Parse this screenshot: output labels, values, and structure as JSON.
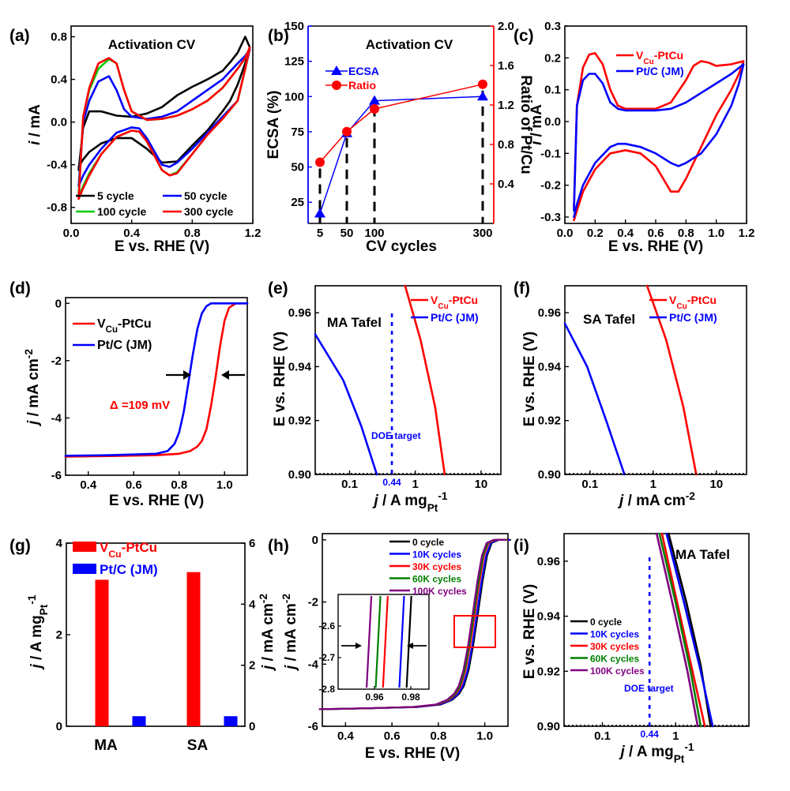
{
  "colors": {
    "black": "#000000",
    "red": "#ff0000",
    "blue": "#0000ff",
    "green": "#00cc00",
    "purple": "#800080"
  },
  "chart_data": [
    {
      "panel": "(a)",
      "type": "line",
      "annotation": "Activation CV",
      "xlabel": "E vs. RHE (V)",
      "ylabel": "i / mA",
      "xlim": [
        0.0,
        1.2
      ],
      "ylim": [
        -0.95,
        0.9
      ],
      "xticks": [
        0.0,
        0.4,
        0.8,
        1.2
      ],
      "yticks": [
        -0.8,
        -0.4,
        0.0,
        0.4,
        0.8
      ],
      "legend_position": "bottom",
      "series": [
        {
          "name": "5 cycle",
          "color": "#000000",
          "x": [
            0.05,
            0.08,
            0.12,
            0.2,
            0.3,
            0.4,
            0.5,
            0.6,
            0.7,
            0.8,
            0.9,
            1.0,
            1.05,
            1.1,
            1.15,
            1.18,
            1.15,
            1.1,
            1.05,
            1.0,
            0.9,
            0.8,
            0.7,
            0.6,
            0.5,
            0.4,
            0.3,
            0.2,
            0.12,
            0.08,
            0.05
          ],
          "y": [
            -0.45,
            -0.05,
            0.1,
            0.1,
            0.06,
            0.05,
            0.08,
            0.14,
            0.25,
            0.33,
            0.4,
            0.48,
            0.56,
            0.65,
            0.8,
            0.7,
            0.55,
            0.35,
            0.2,
            0.1,
            -0.08,
            -0.22,
            -0.37,
            -0.38,
            -0.25,
            -0.15,
            -0.15,
            -0.2,
            -0.28,
            -0.35,
            -0.42
          ]
        },
        {
          "name": "50 cycle",
          "color": "#0000ff",
          "x": [
            0.05,
            0.08,
            0.12,
            0.18,
            0.25,
            0.3,
            0.35,
            0.4,
            0.5,
            0.6,
            0.7,
            0.8,
            0.9,
            1.0,
            1.1,
            1.15,
            1.18,
            1.15,
            1.1,
            1.0,
            0.9,
            0.8,
            0.7,
            0.65,
            0.6,
            0.5,
            0.45,
            0.4,
            0.3,
            0.2,
            0.12,
            0.08,
            0.05
          ],
          "y": [
            -0.6,
            0.0,
            0.2,
            0.38,
            0.43,
            0.3,
            0.12,
            0.05,
            0.03,
            0.05,
            0.1,
            0.2,
            0.3,
            0.4,
            0.55,
            0.62,
            0.68,
            0.5,
            0.2,
            0.05,
            -0.1,
            -0.25,
            -0.38,
            -0.42,
            -0.4,
            -0.15,
            -0.06,
            -0.05,
            -0.1,
            -0.25,
            -0.4,
            -0.5,
            -0.6
          ]
        },
        {
          "name": "100 cycle",
          "color": "#00cc00",
          "x": [
            0.05,
            0.08,
            0.12,
            0.18,
            0.25,
            0.3,
            0.35,
            0.4,
            0.5,
            0.6,
            0.7,
            0.8,
            0.9,
            1.0,
            1.1,
            1.15,
            1.18,
            1.15,
            1.1,
            1.0,
            0.9,
            0.8,
            0.7,
            0.65,
            0.6,
            0.5,
            0.45,
            0.4,
            0.3,
            0.2,
            0.12,
            0.08,
            0.05
          ],
          "y": [
            -0.68,
            0.05,
            0.3,
            0.5,
            0.59,
            0.55,
            0.3,
            0.1,
            0.02,
            0.03,
            0.06,
            0.12,
            0.2,
            0.32,
            0.5,
            0.6,
            0.7,
            0.5,
            0.2,
            0.03,
            -0.12,
            -0.3,
            -0.47,
            -0.5,
            -0.45,
            -0.18,
            -0.09,
            -0.08,
            -0.14,
            -0.3,
            -0.48,
            -0.6,
            -0.7
          ]
        },
        {
          "name": "300 cycle",
          "color": "#ff0000",
          "x": [
            0.05,
            0.08,
            0.12,
            0.18,
            0.25,
            0.3,
            0.35,
            0.4,
            0.5,
            0.6,
            0.7,
            0.8,
            0.9,
            1.0,
            1.1,
            1.15,
            1.18,
            1.15,
            1.1,
            1.0,
            0.9,
            0.8,
            0.7,
            0.65,
            0.6,
            0.5,
            0.45,
            0.4,
            0.3,
            0.2,
            0.12,
            0.08,
            0.05
          ],
          "y": [
            -0.72,
            0.05,
            0.32,
            0.55,
            0.6,
            0.55,
            0.3,
            0.1,
            0.02,
            0.03,
            0.06,
            0.12,
            0.2,
            0.32,
            0.5,
            0.6,
            0.7,
            0.5,
            0.2,
            0.03,
            -0.12,
            -0.3,
            -0.48,
            -0.5,
            -0.45,
            -0.18,
            -0.09,
            -0.08,
            -0.14,
            -0.3,
            -0.5,
            -0.62,
            -0.72
          ]
        }
      ]
    },
    {
      "panel": "(b)",
      "type": "line",
      "annotation": "Activation CV",
      "xlabel": "CV cycles",
      "ylabel": "ECSA (%)",
      "ylabel_right": "Ratio of Pt/Cu",
      "x_categories": [
        "5",
        "50",
        "100",
        "300"
      ],
      "ylim": [
        10,
        150
      ],
      "yticks": [
        25,
        50,
        75,
        100,
        125,
        150
      ],
      "ylim_right": [
        0.0,
        2.0
      ],
      "yticks_right": [
        0.4,
        0.8,
        1.2,
        1.6,
        2.0
      ],
      "legend_position": "top-left",
      "series": [
        {
          "name": "ECSA",
          "color": "#0000ff",
          "marker": "triangle",
          "axis": "left",
          "x": [
            "5",
            "50",
            "100",
            "300"
          ],
          "values": [
            17,
            74,
            97,
            100
          ]
        },
        {
          "name": "Ratio",
          "color": "#ff0000",
          "marker": "circle",
          "axis": "right",
          "x": [
            "5",
            "50",
            "100",
            "300"
          ],
          "values": [
            0.62,
            0.93,
            1.16,
            1.41
          ]
        }
      ]
    },
    {
      "panel": "(c)",
      "type": "line",
      "xlabel": "E vs. RHE (V)",
      "ylabel": "i / mA",
      "xlim": [
        0.0,
        1.2
      ],
      "ylim": [
        -0.32,
        0.3
      ],
      "xticks": [
        0.0,
        0.2,
        0.4,
        0.6,
        0.8,
        1.0,
        1.2
      ],
      "yticks": [
        -0.3,
        -0.2,
        -0.1,
        0.0,
        0.1,
        0.2,
        0.3
      ],
      "legend_position": "top-right",
      "series": [
        {
          "name": "VCu-PtCu",
          "color": "#ff0000",
          "x": [
            0.06,
            0.08,
            0.12,
            0.16,
            0.2,
            0.25,
            0.3,
            0.35,
            0.4,
            0.5,
            0.6,
            0.7,
            0.8,
            0.85,
            0.9,
            0.95,
            1.0,
            1.1,
            1.18,
            1.15,
            1.1,
            1.0,
            0.9,
            0.8,
            0.75,
            0.7,
            0.65,
            0.6,
            0.5,
            0.4,
            0.3,
            0.2,
            0.12,
            0.08,
            0.06
          ],
          "y": [
            -0.27,
            0.05,
            0.17,
            0.21,
            0.215,
            0.18,
            0.1,
            0.05,
            0.04,
            0.04,
            0.04,
            0.06,
            0.13,
            0.175,
            0.19,
            0.185,
            0.175,
            0.18,
            0.19,
            0.15,
            0.1,
            0.02,
            -0.08,
            -0.18,
            -0.22,
            -0.22,
            -0.18,
            -0.14,
            -0.1,
            -0.09,
            -0.1,
            -0.15,
            -0.22,
            -0.28,
            -0.31
          ]
        },
        {
          "name": "Pt/C (JM)",
          "color": "#0000ff",
          "x": [
            0.06,
            0.08,
            0.12,
            0.16,
            0.2,
            0.25,
            0.3,
            0.35,
            0.4,
            0.5,
            0.6,
            0.7,
            0.8,
            0.9,
            1.0,
            1.1,
            1.18,
            1.15,
            1.1,
            1.0,
            0.9,
            0.8,
            0.75,
            0.7,
            0.6,
            0.5,
            0.4,
            0.35,
            0.3,
            0.2,
            0.12,
            0.08,
            0.06
          ],
          "y": [
            -0.28,
            0.05,
            0.13,
            0.15,
            0.15,
            0.12,
            0.06,
            0.04,
            0.035,
            0.035,
            0.035,
            0.04,
            0.06,
            0.09,
            0.12,
            0.15,
            0.18,
            0.12,
            0.05,
            -0.04,
            -0.1,
            -0.13,
            -0.14,
            -0.13,
            -0.1,
            -0.08,
            -0.07,
            -0.07,
            -0.08,
            -0.13,
            -0.2,
            -0.26,
            -0.3
          ]
        }
      ]
    },
    {
      "panel": "(d)",
      "type": "line",
      "xlabel": "E vs. RHE (V)",
      "ylabel": "j / mA cm-2",
      "xlim": [
        0.3,
        1.1
      ],
      "ylim": [
        -6,
        0.2
      ],
      "xticks": [
        0.4,
        0.6,
        0.8,
        1.0
      ],
      "yticks": [
        -6,
        -4,
        -2,
        0
      ],
      "legend_position": "top-left",
      "annotation": "Δ =109 mV",
      "series": [
        {
          "name": "VCu-PtCu",
          "color": "#ff0000",
          "x": [
            0.3,
            0.5,
            0.7,
            0.8,
            0.85,
            0.88,
            0.9,
            0.92,
            0.94,
            0.96,
            0.98,
            1.0,
            1.02,
            1.05,
            1.1
          ],
          "y": [
            -5.35,
            -5.33,
            -5.3,
            -5.25,
            -5.15,
            -5.0,
            -4.8,
            -4.4,
            -3.6,
            -2.6,
            -1.5,
            -0.6,
            -0.15,
            0.0,
            0.0
          ]
        },
        {
          "name": "Pt/C (JM)",
          "color": "#0000ff",
          "x": [
            0.3,
            0.5,
            0.7,
            0.75,
            0.78,
            0.8,
            0.82,
            0.84,
            0.86,
            0.88,
            0.9,
            0.92,
            0.94,
            0.97,
            1.1
          ],
          "y": [
            -5.32,
            -5.3,
            -5.25,
            -5.15,
            -4.9,
            -4.5,
            -3.8,
            -2.8,
            -1.8,
            -0.9,
            -0.35,
            -0.1,
            0.0,
            0.0,
            0.0
          ]
        }
      ]
    },
    {
      "panel": "(e)",
      "type": "line",
      "xscale": "log",
      "annotation": "MA Tafel",
      "annotation2": "DOE target",
      "target_label": "0.44",
      "xlabel": "j / A mgPt-1",
      "ylabel": "E vs. RHE (V)",
      "xlim": [
        0.03,
        20
      ],
      "ylim": [
        0.9,
        0.97
      ],
      "xtick_labels": [
        "0.1",
        "1",
        "10"
      ],
      "yticks": [
        0.9,
        0.92,
        0.94,
        0.96
      ],
      "target_x": 0.44,
      "legend_position": "top-right",
      "series": [
        {
          "name": "VCu-PtCu",
          "color": "#ff0000",
          "x": [
            0.7,
            1.2,
            2.0,
            2.8
          ],
          "y": [
            0.97,
            0.95,
            0.925,
            0.9
          ]
        },
        {
          "name": "Pt/C (JM)",
          "color": "#0000ff",
          "x": [
            0.03,
            0.08,
            0.15,
            0.26
          ],
          "y": [
            0.952,
            0.935,
            0.918,
            0.9
          ]
        }
      ]
    },
    {
      "panel": "(f)",
      "type": "line",
      "xscale": "log",
      "annotation": "SA Tafel",
      "xlabel": "j / mA cm-2",
      "ylabel": "E vs. RHE (V)",
      "xlim": [
        0.04,
        30
      ],
      "ylim": [
        0.9,
        0.97
      ],
      "xtick_labels": [
        "0.1",
        "1",
        "10"
      ],
      "yticks": [
        0.9,
        0.92,
        0.94,
        0.96
      ],
      "legend_position": "top-right",
      "series": [
        {
          "name": "VCu-PtCu",
          "color": "#ff0000",
          "x": [
            0.8,
            1.6,
            3.0,
            4.8
          ],
          "y": [
            0.97,
            0.95,
            0.925,
            0.9
          ]
        },
        {
          "name": "Pt/C (JM)",
          "color": "#0000ff",
          "x": [
            0.04,
            0.09,
            0.18,
            0.35
          ],
          "y": [
            0.956,
            0.94,
            0.92,
            0.9
          ]
        }
      ]
    },
    {
      "panel": "(g)",
      "type": "bar",
      "categories": [
        "MA",
        "SA"
      ],
      "ylabel": "j / A mgPt-1",
      "ylabel_right": "j / mA cm-2",
      "ylim": [
        0,
        4
      ],
      "yticks": [
        0,
        2,
        4
      ],
      "ylim_right": [
        0,
        6
      ],
      "yticks_right": [
        0,
        2,
        4,
        6
      ],
      "legend_position": "top-left",
      "series": [
        {
          "name": "VCu-PtCu",
          "color": "#ff0000",
          "values": [
            3.2,
            5.05
          ],
          "axes": [
            "left",
            "right"
          ]
        },
        {
          "name": "Pt/C (JM)",
          "color": "#0000ff",
          "values": [
            0.22,
            0.33
          ],
          "axes": [
            "left",
            "right"
          ]
        }
      ]
    },
    {
      "panel": "(h)",
      "type": "line",
      "xlabel": "E vs. RHE (V)",
      "ylabel": "j / mA cm-2",
      "xlim": [
        0.3,
        1.1
      ],
      "ylim": [
        -6,
        0.2
      ],
      "xticks": [
        0.4,
        0.6,
        0.8,
        1.0
      ],
      "yticks": [
        -6,
        -4,
        -2,
        0
      ],
      "legend_position": "top-right",
      "inset": {
        "xlim": [
          0.94,
          0.99
        ],
        "ylim": [
          -2.8,
          -2.5
        ],
        "xtick_labels": [
          "0.96",
          "0.98"
        ],
        "yticks": [
          -2.6,
          -2.7,
          -2.8
        ]
      },
      "series": [
        {
          "name": "0 cycle",
          "color": "#000000",
          "inset_x": 0.979
        },
        {
          "name": "10K cycles",
          "color": "#0000ff",
          "inset_x": 0.975
        },
        {
          "name": "30K cycles",
          "color": "#ff0000",
          "inset_x": 0.966
        },
        {
          "name": "60K cycles",
          "color": "#008000",
          "inset_x": 0.962
        },
        {
          "name": "100K cycles",
          "color": "#800080",
          "inset_x": 0.957
        }
      ],
      "base_curve": {
        "x": [
          0.3,
          0.5,
          0.7,
          0.8,
          0.85,
          0.88,
          0.9,
          0.92,
          0.94,
          0.96,
          0.98,
          1.0,
          1.02,
          1.05,
          1.1
        ],
        "y": [
          -5.45,
          -5.42,
          -5.38,
          -5.3,
          -5.15,
          -4.95,
          -4.7,
          -4.2,
          -3.4,
          -2.4,
          -1.35,
          -0.5,
          -0.1,
          0.0,
          0.0
        ]
      }
    },
    {
      "panel": "(i)",
      "type": "line",
      "xscale": "log",
      "annotation": "MA Tafel",
      "annotation2": "DOE target",
      "target_label": "0.44",
      "xlabel": "j / A mgPt-1",
      "ylabel": "E vs. RHE (V)",
      "xlim": [
        0.03,
        10
      ],
      "ylim": [
        0.9,
        0.97
      ],
      "xtick_labels": [
        "0.1",
        "1"
      ],
      "yticks": [
        0.9,
        0.92,
        0.94,
        0.96
      ],
      "target_x": 0.44,
      "legend_position": "left",
      "series": [
        {
          "name": "0 cycle",
          "color": "#000000",
          "x": [
            0.8,
            1.4,
            2.2,
            3.0
          ],
          "y": [
            0.97,
            0.945,
            0.922,
            0.9
          ]
        },
        {
          "name": "10K cycles",
          "color": "#0000ff",
          "x": [
            0.75,
            1.3,
            2.2,
            3.2
          ],
          "y": [
            0.97,
            0.945,
            0.92,
            0.9
          ]
        },
        {
          "name": "30K cycles",
          "color": "#ff0000",
          "x": [
            0.65,
            1.05,
            1.7,
            2.5
          ],
          "y": [
            0.97,
            0.945,
            0.92,
            0.9
          ]
        },
        {
          "name": "60K cycles",
          "color": "#008000",
          "x": [
            0.6,
            1.0,
            1.6,
            2.2
          ],
          "y": [
            0.97,
            0.945,
            0.92,
            0.9
          ]
        },
        {
          "name": "100K cycles",
          "color": "#800080",
          "x": [
            0.55,
            0.9,
            1.45,
            2.0
          ],
          "y": [
            0.97,
            0.945,
            0.92,
            0.9
          ]
        }
      ]
    }
  ]
}
